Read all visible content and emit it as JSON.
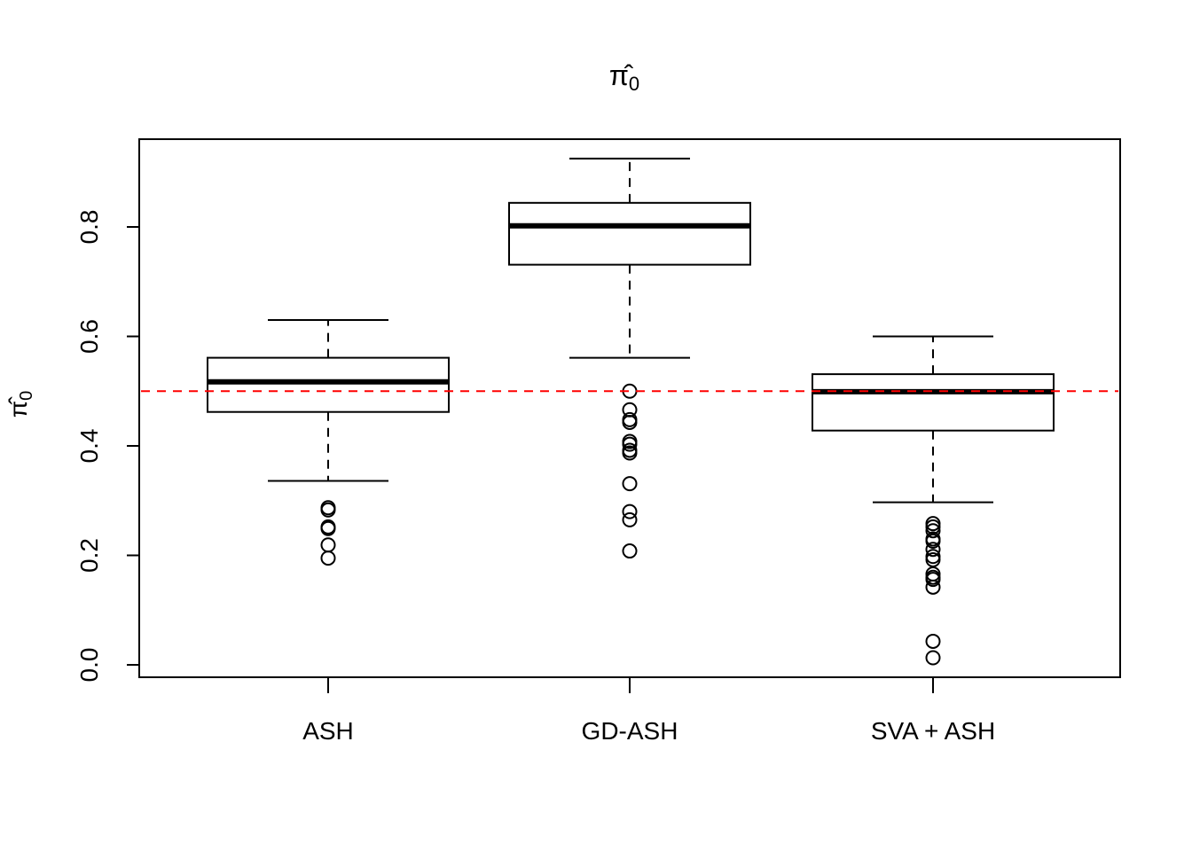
{
  "chart_data": {
    "type": "boxplot",
    "title": "π̂0",
    "title_main": "π̂",
    "title_sub": "0",
    "ylabel_main": "π̂",
    "ylabel_sub": "0",
    "xlabel": "",
    "ylim": [
      -0.02,
      0.955
    ],
    "yticks": [
      0.0,
      0.2,
      0.4,
      0.6,
      0.8
    ],
    "ytick_labels": [
      "0.0",
      "0.2",
      "0.4",
      "0.6",
      "0.8"
    ],
    "grid": false,
    "reference_line": {
      "y": 0.5,
      "color": "#ff0000",
      "style": "dashed"
    },
    "categories": [
      "ASH",
      "GD-ASH",
      "SVA + ASH"
    ],
    "boxes": [
      {
        "name": "ASH",
        "whisker_low": 0.336,
        "q1": 0.462,
        "median": 0.517,
        "q3": 0.561,
        "whisker_high": 0.63,
        "outliers": [
          0.287,
          0.283,
          0.252,
          0.249,
          0.219,
          0.195
        ]
      },
      {
        "name": "GD-ASH",
        "whisker_low": 0.561,
        "q1": 0.731,
        "median": 0.802,
        "q3": 0.844,
        "whisker_high": 0.925,
        "outliers": [
          0.5,
          0.466,
          0.448,
          0.443,
          0.408,
          0.403,
          0.392,
          0.387,
          0.331,
          0.28,
          0.265,
          0.208
        ]
      },
      {
        "name": "SVA + ASH",
        "whisker_low": 0.297,
        "q1": 0.428,
        "median": 0.499,
        "q3": 0.531,
        "whisker_high": 0.6,
        "outliers": [
          0.258,
          0.252,
          0.245,
          0.23,
          0.226,
          0.211,
          0.198,
          0.192,
          0.166,
          0.16,
          0.156,
          0.142,
          0.043,
          0.013
        ]
      }
    ]
  }
}
